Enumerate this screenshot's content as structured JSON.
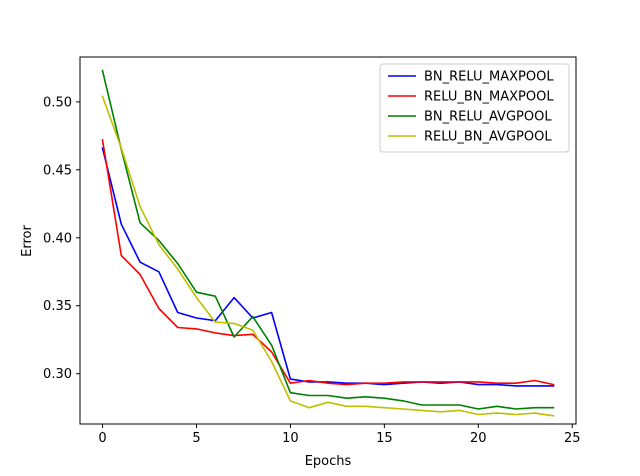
{
  "chart_data": {
    "type": "line",
    "title": "",
    "xlabel": "Epochs",
    "ylabel": "Error",
    "xlim": [
      -1.2,
      25.2
    ],
    "ylim": [
      0.263,
      0.533
    ],
    "xticks": [
      0,
      5,
      10,
      15,
      20,
      25
    ],
    "yticks": [
      0.3,
      0.35,
      0.4,
      0.45,
      0.5
    ],
    "xtick_labels": [
      "0",
      "5",
      "10",
      "15",
      "20",
      "25"
    ],
    "ytick_labels": [
      "0.30",
      "0.35",
      "0.40",
      "0.45",
      "0.50"
    ],
    "grid": false,
    "legend_position": "top-right",
    "x": [
      0,
      1,
      2,
      3,
      4,
      5,
      6,
      7,
      8,
      9,
      10,
      11,
      12,
      13,
      14,
      15,
      16,
      17,
      18,
      19,
      20,
      21,
      22,
      23,
      24
    ],
    "series": [
      {
        "name": "BN_RELU_MAXPOOL",
        "color": "#0000ff",
        "values": [
          0.466,
          0.41,
          0.382,
          0.375,
          0.345,
          0.341,
          0.339,
          0.356,
          0.341,
          0.345,
          0.296,
          0.294,
          0.294,
          0.293,
          0.293,
          0.292,
          0.293,
          0.294,
          0.293,
          0.294,
          0.292,
          0.292,
          0.291,
          0.291,
          0.291
        ]
      },
      {
        "name": "RELU_BN_MAXPOOL",
        "color": "#ff0000",
        "values": [
          0.472,
          0.387,
          0.373,
          0.348,
          0.334,
          0.333,
          0.33,
          0.328,
          0.329,
          0.316,
          0.293,
          0.295,
          0.293,
          0.292,
          0.293,
          0.293,
          0.294,
          0.294,
          0.294,
          0.294,
          0.294,
          0.293,
          0.293,
          0.295,
          0.292
        ]
      },
      {
        "name": "BN_RELU_AVGPOOL",
        "color": "#008000",
        "values": [
          0.523,
          0.465,
          0.411,
          0.398,
          0.381,
          0.36,
          0.357,
          0.327,
          0.342,
          0.321,
          0.286,
          0.284,
          0.284,
          0.282,
          0.283,
          0.282,
          0.28,
          0.277,
          0.277,
          0.277,
          0.274,
          0.276,
          0.274,
          0.275,
          0.275
        ]
      },
      {
        "name": "RELU_BN_AVGPOOL",
        "color": "#bfbf00",
        "values": [
          0.504,
          0.466,
          0.423,
          0.395,
          0.377,
          0.356,
          0.338,
          0.337,
          0.332,
          0.309,
          0.28,
          0.275,
          0.279,
          0.276,
          0.276,
          0.275,
          0.274,
          0.273,
          0.272,
          0.273,
          0.27,
          0.271,
          0.27,
          0.271,
          0.269
        ]
      }
    ]
  }
}
